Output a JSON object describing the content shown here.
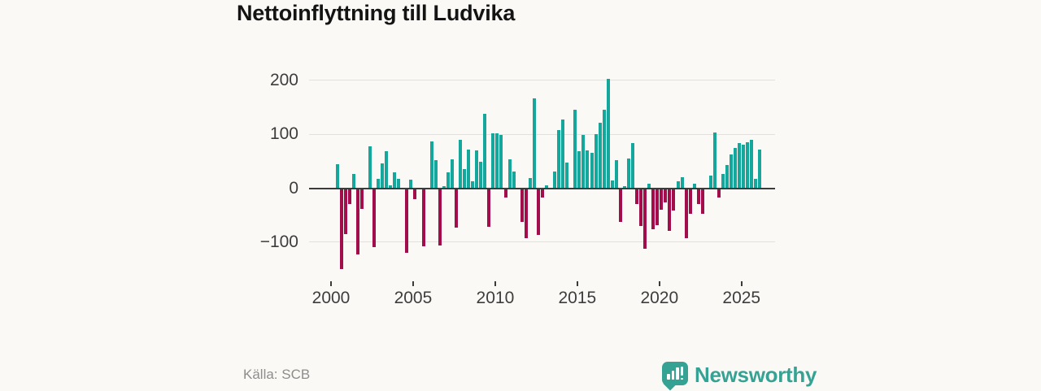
{
  "title": "Nettoinflyttning till Ludvika",
  "source": "Källa: SCB",
  "brand": {
    "name": "Newsworthy",
    "icon": "bar-chart-speech-bubble-icon",
    "color": "#35a294"
  },
  "colors": {
    "background": "#faf9f6",
    "positive_bar": "#15a79b",
    "negative_bar": "#a30d4c",
    "gridline": "#e4e1dd",
    "axis": "#3b3b3b",
    "tick_label": "#3d3d3d",
    "title_text": "#141414",
    "source_text": "#8d8d8d"
  },
  "chart_data": {
    "type": "bar",
    "title": "Nettoinflyttning till Ludvika",
    "xlabel": "",
    "ylabel": "",
    "grid": true,
    "legend": "none",
    "y_ticks": [
      200,
      100,
      0,
      -100
    ],
    "x_ticks": [
      2000,
      2005,
      2010,
      2015,
      2020,
      2025
    ],
    "ylim": [
      -160,
      210
    ],
    "period": "quarterly",
    "categories": [
      "2000Q1",
      "2000Q2",
      "2000Q3",
      "2000Q4",
      "2001Q1",
      "2001Q2",
      "2001Q3",
      "2001Q4",
      "2002Q1",
      "2002Q2",
      "2002Q3",
      "2002Q4",
      "2003Q1",
      "2003Q2",
      "2003Q3",
      "2003Q4",
      "2004Q1",
      "2004Q2",
      "2004Q3",
      "2004Q4",
      "2005Q1",
      "2005Q2",
      "2005Q3",
      "2005Q4",
      "2006Q1",
      "2006Q2",
      "2006Q3",
      "2006Q4",
      "2007Q1",
      "2007Q2",
      "2007Q3",
      "2007Q4",
      "2008Q1",
      "2008Q2",
      "2008Q3",
      "2008Q4",
      "2009Q1",
      "2009Q2",
      "2009Q3",
      "2009Q4",
      "2010Q1",
      "2010Q2",
      "2010Q3",
      "2010Q4",
      "2011Q1",
      "2011Q2",
      "2011Q3",
      "2011Q4",
      "2012Q1",
      "2012Q2",
      "2012Q3",
      "2012Q4",
      "2013Q1",
      "2013Q2",
      "2013Q3",
      "2013Q4",
      "2014Q1",
      "2014Q2",
      "2014Q3",
      "2014Q4",
      "2015Q1",
      "2015Q2",
      "2015Q3",
      "2015Q4",
      "2016Q1",
      "2016Q2",
      "2016Q3",
      "2016Q4",
      "2017Q1",
      "2017Q2",
      "2017Q3",
      "2017Q4",
      "2018Q1",
      "2018Q2",
      "2018Q3",
      "2018Q4",
      "2019Q1",
      "2019Q2",
      "2019Q3",
      "2019Q4",
      "2020Q1",
      "2020Q2",
      "2020Q3",
      "2020Q4",
      "2021Q1",
      "2021Q2",
      "2021Q3",
      "2021Q4",
      "2022Q1",
      "2022Q2",
      "2022Q3",
      "2022Q4",
      "2023Q1",
      "2023Q2",
      "2023Q3",
      "2023Q4",
      "2024Q1",
      "2024Q2",
      "2024Q3",
      "2024Q4",
      "2025Q1",
      "2025Q2",
      "2025Q3",
      "2025Q4",
      "2026Q1"
    ],
    "values": [
      0,
      45,
      -150,
      -85,
      -29,
      27,
      -123,
      -38,
      0,
      77,
      -109,
      18,
      46,
      68,
      5,
      30,
      18,
      0,
      -120,
      16,
      -20,
      0,
      -108,
      0,
      86,
      52,
      -106,
      4,
      30,
      53,
      -73,
      90,
      36,
      72,
      13,
      70,
      49,
      138,
      -71,
      101,
      101,
      99,
      -18,
      54,
      31,
      0,
      -62,
      -93,
      19,
      166,
      -87,
      -17,
      5,
      0,
      31,
      107,
      127,
      47,
      0,
      145,
      69,
      99,
      70,
      66,
      100,
      121,
      145,
      202,
      14,
      52,
      -62,
      4,
      55,
      83,
      -30,
      -70,
      -112,
      8,
      -76,
      -69,
      -40,
      -27,
      -79,
      -42,
      13,
      21,
      -92,
      -47,
      9,
      -30,
      -48,
      0,
      24,
      103,
      -18,
      26,
      43,
      62,
      75,
      83,
      80,
      85,
      90,
      17,
      71
    ]
  }
}
